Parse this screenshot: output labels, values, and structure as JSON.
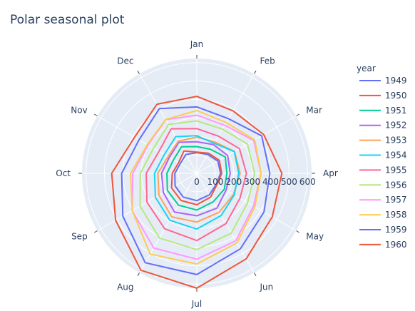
{
  "chart_data": {
    "type": "line",
    "subtype": "polar",
    "title": "Polar seasonal plot",
    "categories": [
      "Jan",
      "Feb",
      "Mar",
      "Apr",
      "May",
      "Jun",
      "Jul",
      "Aug",
      "Sep",
      "Oct",
      "Nov",
      "Dec"
    ],
    "radial_ticks": [
      0,
      100,
      200,
      300,
      400,
      500,
      600
    ],
    "radial_range": [
      0,
      622
    ],
    "angular_direction": "clockwise",
    "angular_rotation": "Jan at top",
    "background": "#e5ecf6",
    "grid": true,
    "legend": {
      "title": "year",
      "placement": "right"
    },
    "series": [
      {
        "name": "1949",
        "color": "#636efa",
        "values": [
          112,
          118,
          132,
          129,
          121,
          135,
          148,
          148,
          136,
          119,
          104,
          118
        ]
      },
      {
        "name": "1950",
        "color": "#EF553B",
        "values": [
          115,
          126,
          141,
          135,
          125,
          149,
          170,
          170,
          158,
          133,
          114,
          140
        ]
      },
      {
        "name": "1951",
        "color": "#00cc96",
        "values": [
          145,
          150,
          178,
          163,
          172,
          178,
          199,
          199,
          184,
          162,
          146,
          166
        ]
      },
      {
        "name": "1952",
        "color": "#ab63fa",
        "values": [
          171,
          180,
          193,
          181,
          183,
          218,
          230,
          242,
          209,
          191,
          172,
          194
        ]
      },
      {
        "name": "1953",
        "color": "#FFA15A",
        "values": [
          196,
          196,
          236,
          235,
          229,
          243,
          264,
          272,
          237,
          211,
          180,
          201
        ]
      },
      {
        "name": "1954",
        "color": "#19d3f3",
        "values": [
          204,
          188,
          235,
          227,
          234,
          264,
          302,
          293,
          259,
          229,
          203,
          229
        ]
      },
      {
        "name": "1955",
        "color": "#FF6692",
        "values": [
          242,
          233,
          267,
          269,
          270,
          315,
          364,
          347,
          312,
          274,
          237,
          278
        ]
      },
      {
        "name": "1956",
        "color": "#B6E880",
        "values": [
          284,
          277,
          317,
          313,
          318,
          374,
          413,
          405,
          355,
          306,
          271,
          306
        ]
      },
      {
        "name": "1957",
        "color": "#FF97FF",
        "values": [
          315,
          301,
          356,
          348,
          355,
          422,
          465,
          467,
          404,
          347,
          305,
          336
        ]
      },
      {
        "name": "1958",
        "color": "#FECB52",
        "values": [
          340,
          318,
          362,
          348,
          363,
          435,
          491,
          505,
          404,
          359,
          310,
          337
        ]
      },
      {
        "name": "1959",
        "color": "#636efa",
        "values": [
          360,
          342,
          406,
          396,
          420,
          472,
          548,
          559,
          463,
          407,
          362,
          405
        ]
      },
      {
        "name": "1960",
        "color": "#EF553B",
        "values": [
          417,
          391,
          419,
          461,
          472,
          535,
          622,
          606,
          508,
          461,
          390,
          432
        ]
      }
    ]
  }
}
